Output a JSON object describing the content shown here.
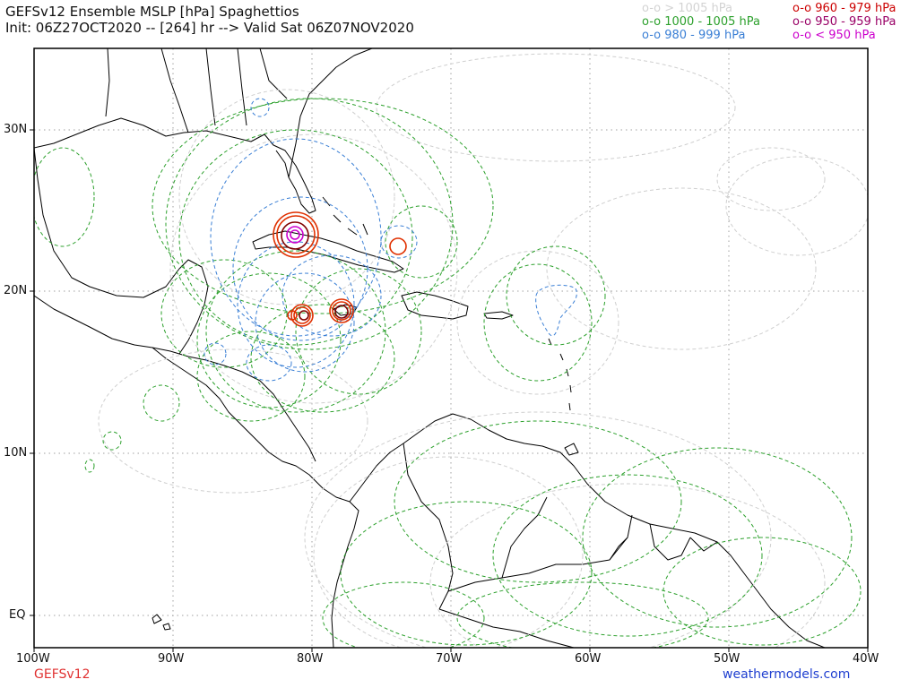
{
  "header": {
    "title": "GEFSv12 Ensemble MSLP [hPa] Spaghettios",
    "subtitle": "Init: 06Z27OCT2020 -- [264] hr --> Valid Sat 06Z07NOV2020"
  },
  "legend": {
    "items": [
      {
        "marker": "o-o",
        "label": "> 1005 hPa",
        "color": "#d3d3d3"
      },
      {
        "marker": "o-o",
        "label": "1000 - 1005 hPa",
        "color": "#2ca02c"
      },
      {
        "marker": "o-o",
        "label": "980 - 999 hPa",
        "color": "#3a7fd5"
      },
      {
        "marker": "o-o",
        "label": "960 - 979 hPa",
        "color": "#cc0000"
      },
      {
        "marker": "o-o",
        "label": "950 - 959 hPa",
        "color": "#990066"
      },
      {
        "marker": "o-o",
        "label": "< 950 hPa",
        "color": "#cc00cc"
      }
    ]
  },
  "axes": {
    "x_ticks": [
      "100W",
      "90W",
      "80W",
      "70W",
      "60W",
      "50W",
      "40W"
    ],
    "y_ticks": [
      "30N",
      "20N",
      "10N",
      "EQ"
    ]
  },
  "footer": {
    "model": "GEFSv12",
    "source": "weathermodels.com",
    "model_color": "#e03030",
    "source_color": "#1f3fd0"
  },
  "colors": {
    "land_outline": "#000000",
    "gridline": "#a0a0a0"
  }
}
